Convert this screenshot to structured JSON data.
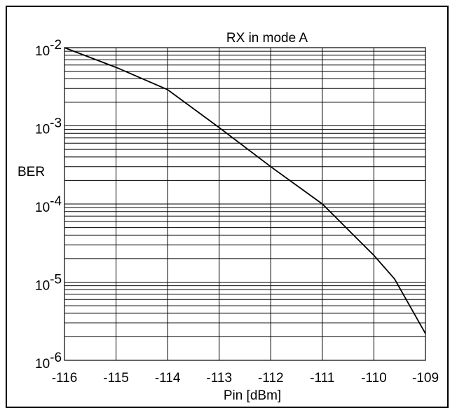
{
  "chart_data": {
    "type": "line",
    "title": "RX in mode A",
    "xlabel": "Pin [dBm]",
    "ylabel": "BER",
    "y_scale": "log",
    "xlim": [
      -116,
      -109
    ],
    "ylim_exponents": [
      -6,
      -2
    ],
    "x_ticks": [
      "-116",
      "-115",
      "-114",
      "-113",
      "-112",
      "-111",
      "-110",
      "-109"
    ],
    "y_ticks": [
      {
        "exp": -2,
        "base": "10",
        "power": "-2"
      },
      {
        "exp": -3,
        "base": "10",
        "power": "-3"
      },
      {
        "exp": -4,
        "base": "10",
        "power": "-4"
      },
      {
        "exp": -5,
        "base": "10",
        "power": "-5"
      },
      {
        "exp": -6,
        "base": "10",
        "power": "-6"
      }
    ],
    "grid": "on (major and minor horizontal lines, major vertical lines)",
    "series": [
      {
        "x": [
          -116,
          -115,
          -114,
          -113,
          -112,
          -111,
          -110,
          -109.6,
          -109
        ],
        "y": [
          0.01,
          0.0056,
          0.0029,
          0.00095,
          0.0003,
          0.0001,
          2.2e-05,
          1.1e-05,
          2.2e-06
        ]
      }
    ]
  }
}
